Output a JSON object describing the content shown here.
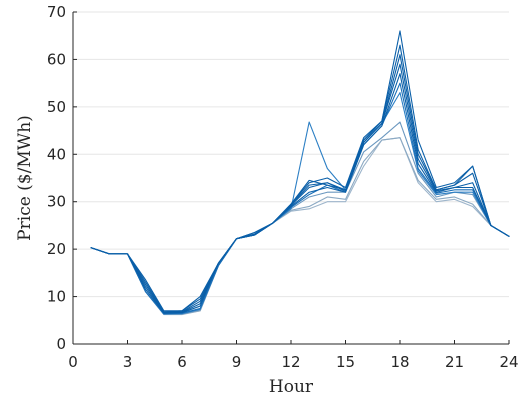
{
  "chart_data": {
    "type": "line",
    "title": "",
    "xlabel": "Hour",
    "ylabel": "Price ($/MWh)",
    "xlim": [
      0,
      24
    ],
    "ylim": [
      0,
      70
    ],
    "xticks": [
      0,
      3,
      6,
      9,
      12,
      15,
      18,
      21,
      24
    ],
    "yticks": [
      0,
      10,
      20,
      30,
      40,
      50,
      60,
      70
    ],
    "grid": true,
    "colors": {
      "dark": "#0a5fa8",
      "mid": "#2c7fc4",
      "light": "#8ba9c3",
      "axis": "#262626",
      "grid": "#e6e6e6"
    },
    "x": [
      1,
      2,
      3,
      4,
      5,
      6,
      7,
      8,
      9,
      10,
      11,
      12,
      13,
      14,
      15,
      16,
      17,
      18,
      19,
      20,
      21,
      22,
      23,
      24
    ],
    "series": [
      {
        "color": "#0a5fa8",
        "values": [
          20.3,
          19,
          19,
          13.5,
          7,
          7,
          10,
          17,
          22.2,
          23.5,
          25.5,
          29.5,
          34,
          35,
          33,
          43.5,
          47,
          66,
          43,
          33,
          34,
          37.5,
          25,
          22.7
        ]
      },
      {
        "color": "#0a5fa8",
        "values": [
          20.3,
          19,
          19,
          13,
          6.8,
          7,
          9.5,
          17,
          22.2,
          23.5,
          25.5,
          29.5,
          34.5,
          33.5,
          32.5,
          43,
          47,
          63,
          41,
          32.5,
          33.5,
          37.5,
          25,
          22.7
        ]
      },
      {
        "color": "#0a5fa8",
        "values": [
          20.3,
          19,
          19,
          12.5,
          6.7,
          6.8,
          9,
          17,
          22.2,
          23.2,
          25.5,
          29.3,
          33.5,
          34,
          32.5,
          42.5,
          46.5,
          61,
          40,
          32.5,
          33.5,
          36,
          25,
          22.7
        ]
      },
      {
        "color": "#0a5fa8",
        "values": [
          20.3,
          19,
          19,
          12,
          6.6,
          6.7,
          8.5,
          17,
          22.2,
          23,
          25.5,
          29.2,
          33,
          34,
          32.2,
          42.5,
          46.5,
          59,
          39,
          32.3,
          33,
          34,
          25,
          22.7
        ]
      },
      {
        "color": "#0a5fa8",
        "values": [
          20.3,
          19,
          19,
          11.5,
          6.5,
          6.6,
          8,
          17,
          22.2,
          23,
          25.5,
          29,
          32,
          33,
          32,
          42,
          46,
          57,
          38,
          32,
          33,
          33,
          25,
          22.7
        ]
      },
      {
        "color": "#1a6fb8",
        "values": [
          20.3,
          19,
          19,
          11,
          6.4,
          6.5,
          7.5,
          16.5,
          22.2,
          23,
          25.5,
          28.8,
          31.5,
          33.5,
          32,
          42,
          46,
          55,
          37,
          31.8,
          32.5,
          32.5,
          25,
          22.7
        ]
      },
      {
        "color": "#2c7fc4",
        "values": [
          20.3,
          19,
          19,
          11,
          6.3,
          6.4,
          7.3,
          16.5,
          22.2,
          23,
          25.5,
          28.5,
          46.8,
          37,
          32.5,
          43,
          46.5,
          53,
          36.5,
          31.5,
          32,
          32,
          25,
          22.7
        ]
      },
      {
        "color": "#6a97bf",
        "values": [
          20.3,
          19,
          19,
          11,
          6.3,
          6.3,
          7.2,
          16.5,
          22.2,
          23,
          25.5,
          28.5,
          31,
          32,
          32,
          40.5,
          43.5,
          46.8,
          36,
          31,
          32,
          31.5,
          25,
          22.7
        ]
      },
      {
        "color": "#8ba9c3",
        "values": [
          20.3,
          19,
          19,
          11,
          6.3,
          6.3,
          7,
          16.5,
          22.2,
          23,
          25.5,
          28.2,
          29,
          31,
          30.5,
          38.5,
          43,
          43.5,
          34.5,
          30.5,
          31,
          29.5,
          25,
          22.7
        ]
      },
      {
        "color": "#9db5cb",
        "values": [
          20.3,
          19,
          19,
          11,
          6.2,
          6.2,
          7,
          16.5,
          22.2,
          23,
          25.5,
          28,
          28.5,
          30,
          30,
          37.5,
          43,
          43.5,
          34,
          30,
          30.5,
          29,
          25,
          22.7
        ]
      }
    ]
  }
}
